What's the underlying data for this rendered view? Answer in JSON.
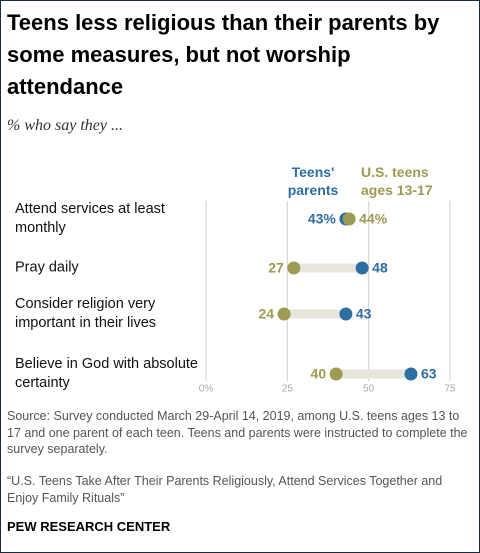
{
  "title": "Teens less religious than their parents by some measures, but not worship attendance",
  "subtitle": "% who say they ...",
  "chart_data": {
    "type": "dot",
    "categories": [
      "Attend services at least monthly",
      "Pray daily",
      "Consider religion very important in their lives",
      "Believe in God with absolute certainty"
    ],
    "series": [
      {
        "name": "Teens' parents",
        "color": "#2f6ea3",
        "values": [
          43,
          48,
          43,
          63
        ],
        "value_labels": [
          "43%",
          "48",
          "43",
          "63"
        ]
      },
      {
        "name": "U.S. teens ages 13-17",
        "color": "#9e9a52",
        "values": [
          44,
          27,
          24,
          40
        ],
        "value_labels": [
          "44%",
          "27",
          "24",
          "40"
        ]
      }
    ],
    "xlim": [
      0,
      75
    ],
    "xticks": [
      {
        "value": 0,
        "label": "0%"
      },
      25,
      50,
      75
    ],
    "grid": true
  },
  "source": "Source: Survey conducted March 29-April 14, 2019, among U.S. teens ages 13 to 17 and one parent of each teen. Teens and parents were instructed to complete the survey separately.",
  "note": "“U.S. Teens Take After Their Parents Religiously, Attend Services Together and Enjoy Family Rituals”",
  "footer": "PEW RESEARCH CENTER"
}
